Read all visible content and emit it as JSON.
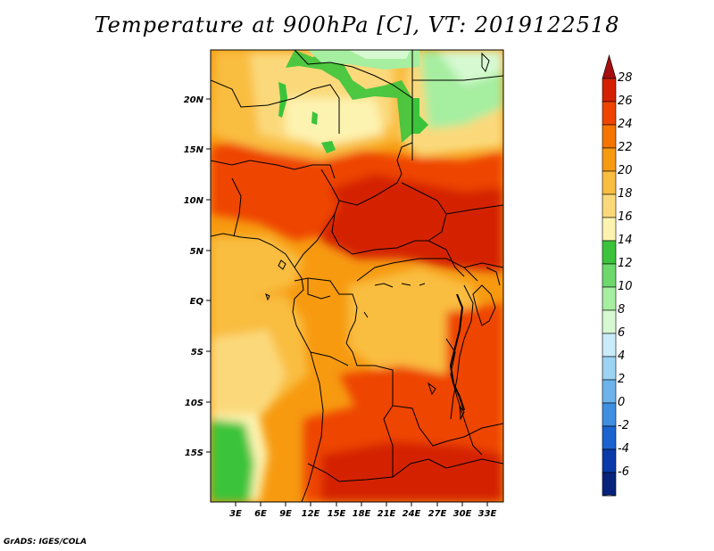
{
  "title": "Temperature at 900hPa [C], VT: 2019122518",
  "credit": "GrADS: IGES/COLA",
  "map": {
    "variable": "Temperature",
    "level": "900hPa",
    "units": "C",
    "valid_time": "2019122518",
    "lon_ticks": [
      "3E",
      "6E",
      "9E",
      "12E",
      "15E",
      "18E",
      "21E",
      "24E",
      "27E",
      "30E",
      "33E"
    ],
    "lat_ticks": [
      "20N",
      "15N",
      "10N",
      "5N",
      "EQ",
      "5S",
      "10S",
      "15S"
    ]
  },
  "colorbar": {
    "labels": [
      "28",
      "26",
      "24",
      "22",
      "20",
      "18",
      "16",
      "14",
      "12",
      "10",
      "8",
      "6",
      "4",
      "2",
      "0",
      "-2",
      "-4",
      "-6"
    ],
    "colors": [
      "#a50f0f",
      "#d42000",
      "#ee4400",
      "#f57500",
      "#f79a10",
      "#f9bd40",
      "#fbd97a",
      "#fdf3b0",
      "#3bc43b",
      "#6dd96d",
      "#a6eea0",
      "#d7f9d2",
      "#c9ecfa",
      "#9dd3f3",
      "#6cb3ec",
      "#3f8fe0",
      "#1b63cf",
      "#0a3aaa",
      "#08237c",
      "#000060"
    ]
  },
  "colors": {
    "background": "#ffffff",
    "hot": "#d42000",
    "mild": "#f79a10",
    "cool_green": "#3bc43b",
    "border": "#000000"
  }
}
